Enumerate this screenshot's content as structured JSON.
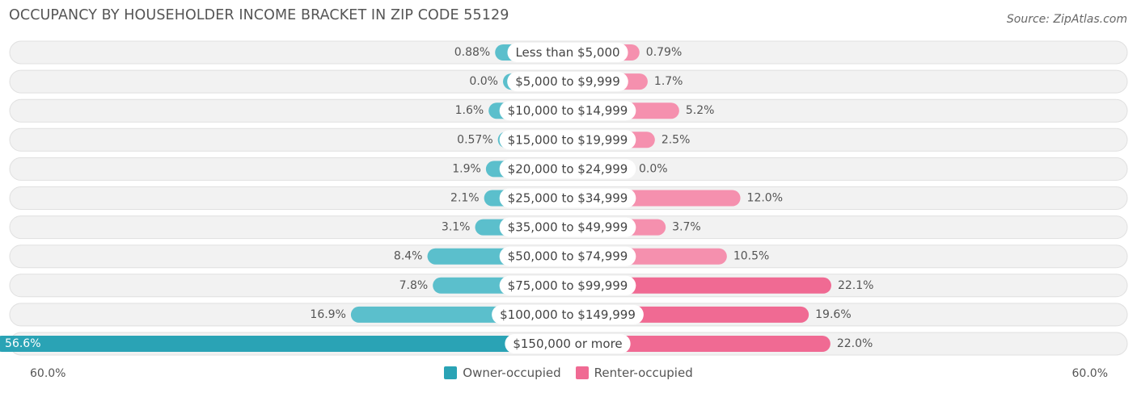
{
  "title": "OCCUPANCY BY HOUSEHOLDER INCOME BRACKET IN ZIP CODE 55129",
  "source": "Source: ZipAtlas.com",
  "colors": {
    "owner": "#5bbfcc",
    "owner_dark": "#2aa3b5",
    "renter": "#f590ae",
    "renter_dark": "#f06a93",
    "row_bg": "#f2f2f2",
    "row_border": "#e0e0e0"
  },
  "legend": {
    "owner_label": "Owner-occupied",
    "renter_label": "Renter-occupied"
  },
  "axis": {
    "left_label": "60.0%",
    "right_label": "60.0%"
  },
  "chart_data": {
    "type": "bar",
    "orientation": "horizontal-diverging",
    "title": "OCCUPANCY BY HOUSEHOLDER INCOME BRACKET IN ZIP CODE 55129",
    "categories": [
      "Less than $5,000",
      "$5,000 to $9,999",
      "$10,000 to $14,999",
      "$15,000 to $19,999",
      "$20,000 to $24,999",
      "$25,000 to $34,999",
      "$35,000 to $49,999",
      "$50,000 to $74,999",
      "$75,000 to $99,999",
      "$100,000 to $149,999",
      "$150,000 or more"
    ],
    "series": [
      {
        "name": "Owner-occupied",
        "values": [
          0.88,
          0.0,
          1.6,
          0.57,
          1.9,
          2.1,
          3.1,
          8.4,
          7.8,
          16.9,
          56.6
        ],
        "labels": [
          "0.88%",
          "0.0%",
          "1.6%",
          "0.57%",
          "1.9%",
          "2.1%",
          "3.1%",
          "8.4%",
          "7.8%",
          "16.9%",
          "56.6%"
        ]
      },
      {
        "name": "Renter-occupied",
        "values": [
          0.79,
          1.7,
          5.2,
          2.5,
          0.0,
          12.0,
          3.7,
          10.5,
          22.1,
          19.6,
          22.0
        ],
        "labels": [
          "0.79%",
          "1.7%",
          "5.2%",
          "2.5%",
          "0.0%",
          "12.0%",
          "3.7%",
          "10.5%",
          "22.1%",
          "19.6%",
          "22.0%"
        ]
      }
    ],
    "xlim": [
      -60,
      60
    ],
    "legend_position": "bottom-center"
  }
}
